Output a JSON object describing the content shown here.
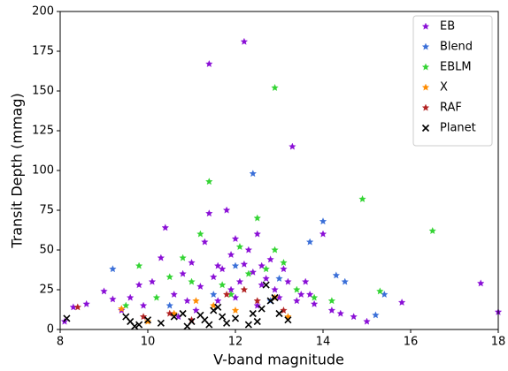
{
  "chart_data": {
    "type": "scatter",
    "x_label": "V-band magnitude",
    "y_label": "Transit Depth (mmag)",
    "xlim": [
      8,
      18
    ],
    "ylim": [
      0,
      200
    ],
    "xticks": [
      8,
      10,
      12,
      14,
      16,
      18
    ],
    "yticks": [
      0,
      25,
      50,
      75,
      100,
      125,
      150,
      175,
      200
    ],
    "grid": false,
    "legend": "upper right",
    "series": [
      {
        "name": "EB",
        "color": "#8a0fd6",
        "marker": "star",
        "x": [
          8.1,
          8.3,
          8.6,
          9.0,
          9.2,
          9.4,
          9.6,
          9.9,
          10.1,
          10.3,
          10.4,
          10.6,
          10.8,
          10.9,
          11.0,
          11.2,
          11.3,
          11.4,
          11.4,
          11.5,
          11.6,
          11.7,
          11.8,
          11.9,
          12.0,
          12.1,
          12.2,
          12.2,
          12.3,
          12.4,
          12.5,
          12.6,
          12.7,
          12.8,
          12.9,
          13.0,
          13.1,
          13.2,
          13.3,
          13.4,
          13.5,
          13.6,
          13.8,
          14.0,
          14.2,
          14.4,
          14.7,
          15.0,
          15.8,
          17.6,
          18.0,
          11.1,
          11.9,
          12.5,
          10.7,
          9.8,
          13.7,
          12.0,
          12.6,
          11.6
        ],
        "values": [
          5,
          14,
          16,
          24,
          19,
          12,
          20,
          15,
          30,
          45,
          64,
          22,
          35,
          18,
          42,
          27,
          55,
          167,
          73,
          33,
          40,
          38,
          75,
          47,
          57,
          30,
          181,
          41,
          50,
          36,
          60,
          28,
          32,
          44,
          25,
          20,
          38,
          30,
          115,
          18,
          22,
          30,
          16,
          60,
          12,
          10,
          8,
          5,
          17,
          29,
          11,
          12,
          25,
          15,
          8,
          28,
          22,
          20,
          40,
          18
        ]
      },
      {
        "name": "Blend",
        "color": "#3a6fd8",
        "marker": "star",
        "x": [
          12.4,
          14.0,
          9.2,
          15.4,
          14.5,
          13.7,
          15.2,
          12.0,
          11.5,
          13.0,
          12.8,
          10.5,
          14.3
        ],
        "values": [
          98,
          68,
          38,
          22,
          30,
          55,
          9,
          40,
          22,
          32,
          18,
          15,
          34
        ]
      },
      {
        "name": "EBLM",
        "color": "#33d433",
        "marker": "star",
        "x": [
          12.9,
          11.4,
          14.9,
          16.5,
          12.5,
          15.3,
          11.2,
          9.8,
          12.9,
          11.0,
          10.2,
          12.3,
          13.4,
          10.8,
          11.7,
          12.1,
          13.1,
          9.5,
          10.5,
          11.9,
          12.7,
          13.8,
          14.2
        ],
        "values": [
          152,
          93,
          82,
          62,
          70,
          24,
          60,
          40,
          50,
          30,
          20,
          35,
          25,
          45,
          28,
          52,
          42,
          15,
          33,
          22,
          38,
          20,
          18
        ]
      },
      {
        "name": "X",
        "color": "#ff8c00",
        "marker": "star",
        "x": [
          9.4,
          10.6,
          11.5,
          12.9,
          13.2,
          12.0,
          10.0,
          11.1
        ],
        "values": [
          13,
          10,
          15,
          20,
          8,
          12,
          5,
          18
        ]
      },
      {
        "name": "RAF",
        "color": "#b22222",
        "marker": "star",
        "x": [
          8.4,
          10.5,
          11.8,
          12.5,
          13.1,
          11.0,
          9.9,
          12.2
        ],
        "values": [
          14,
          10,
          22,
          18,
          12,
          6,
          8,
          25
        ]
      },
      {
        "name": "Planet",
        "color": "#000000",
        "marker": "x",
        "x": [
          8.15,
          9.5,
          9.6,
          9.8,
          10.0,
          10.3,
          10.6,
          10.8,
          11.0,
          11.2,
          11.3,
          11.5,
          11.6,
          11.7,
          11.8,
          12.0,
          12.4,
          12.5,
          12.6,
          12.7,
          12.8,
          12.9,
          13.0,
          13.2,
          12.3,
          11.4,
          10.9,
          9.7
        ],
        "values": [
          7,
          8,
          5,
          3,
          6,
          4,
          8,
          10,
          5,
          9,
          6,
          12,
          14,
          8,
          4,
          7,
          10,
          5,
          13,
          28,
          18,
          20,
          10,
          6,
          3,
          3,
          2,
          2
        ]
      }
    ]
  }
}
